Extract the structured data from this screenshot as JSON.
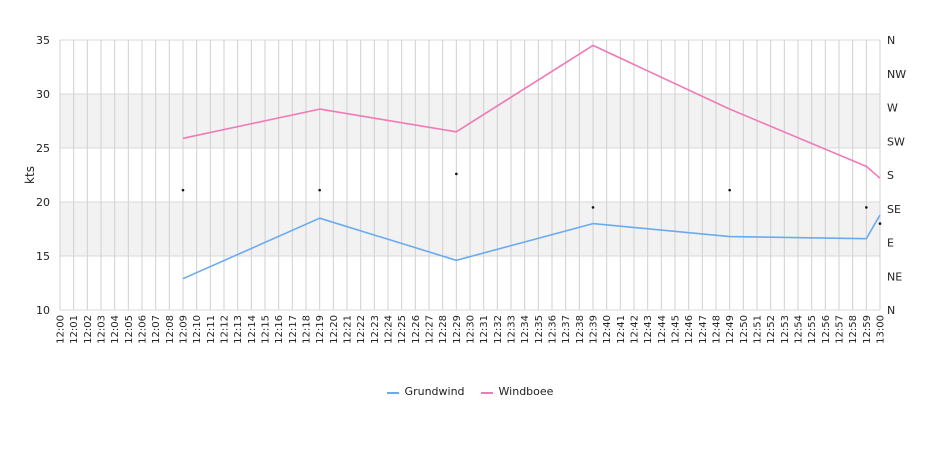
{
  "chart_data": {
    "type": "line",
    "title": "",
    "xlabel": "",
    "ylabel": "kts",
    "ylim": [
      10,
      35
    ],
    "yticks": [
      10,
      15,
      20,
      25,
      30,
      35
    ],
    "y2_labels": [
      "N",
      "NE",
      "E",
      "SE",
      "S",
      "SW",
      "W",
      "NW",
      "N"
    ],
    "x_start": "12:00",
    "x_end": "13:00",
    "x_tick_labels": [
      "12:00",
      "12:01",
      "12:02",
      "12:03",
      "12:04",
      "12:05",
      "12:06",
      "12:07",
      "12:08",
      "12:09",
      "12:10",
      "12:11",
      "12:12",
      "12:13",
      "12:14",
      "12:15",
      "12:16",
      "12:17",
      "12:18",
      "12:19",
      "12:20",
      "12:21",
      "12:22",
      "12:23",
      "12:24",
      "12:25",
      "12:26",
      "12:27",
      "12:28",
      "12:29",
      "12:30",
      "12:31",
      "12:32",
      "12:33",
      "12:34",
      "12:35",
      "12:36",
      "12:37",
      "12:38",
      "12:39",
      "12:40",
      "12:41",
      "12:42",
      "12:43",
      "12:44",
      "12:45",
      "12:46",
      "12:47",
      "12:48",
      "12:49",
      "12:50",
      "12:51",
      "12:52",
      "12:53",
      "12:54",
      "12:55",
      "12:56",
      "12:57",
      "12:58",
      "12:59",
      "13:00"
    ],
    "grid": true,
    "bands": [
      [
        15,
        20
      ],
      [
        25,
        30
      ]
    ],
    "series": [
      {
        "name": "Grundwind",
        "color": "#6aaaf0",
        "points": [
          [
            "12:09",
            12.9
          ],
          [
            "12:19",
            18.5
          ],
          [
            "12:29",
            14.6
          ],
          [
            "12:39",
            18.0
          ],
          [
            "12:49",
            16.8
          ],
          [
            "12:59",
            16.6
          ],
          [
            "13:00",
            18.8
          ]
        ]
      },
      {
        "name": "Windboee",
        "color": "#f07ab8",
        "points": [
          [
            "12:09",
            25.9
          ],
          [
            "12:19",
            28.6
          ],
          [
            "12:29",
            26.5
          ],
          [
            "12:39",
            34.5
          ],
          [
            "12:49",
            28.6
          ],
          [
            "12:59",
            23.3
          ],
          [
            "13:00",
            22.2
          ]
        ]
      }
    ],
    "direction_markers": [
      [
        "12:09",
        21.1
      ],
      [
        "12:19",
        21.1
      ],
      [
        "12:29",
        22.6
      ],
      [
        "12:39",
        19.5
      ],
      [
        "12:49",
        21.1
      ],
      [
        "12:59",
        19.5
      ],
      [
        "13:00",
        18.0
      ]
    ],
    "legend_position": "bottom-center"
  }
}
